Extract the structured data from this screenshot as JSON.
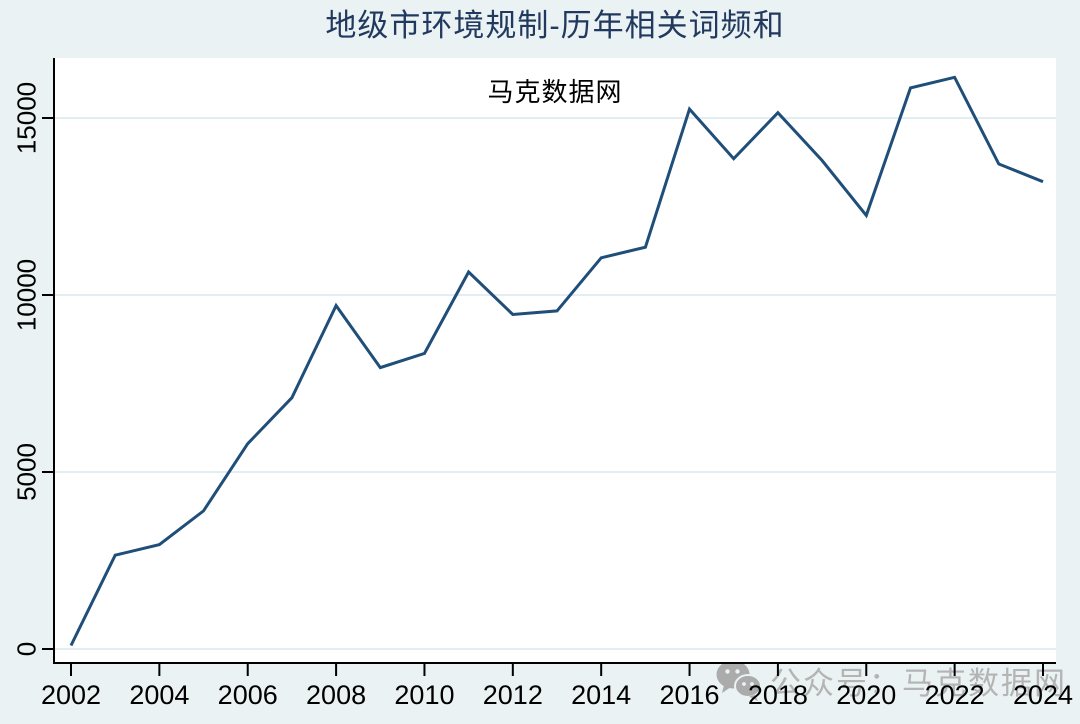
{
  "page": {
    "background": "#eaf2f3",
    "plot_background": "#ffffff",
    "axis_color": "#000000",
    "gridline_color": "#e3eef3"
  },
  "chart_data": {
    "type": "line",
    "title": "地级市环境规制-历年相关词频和",
    "subtitle": "马克数据网",
    "x": [
      2002,
      2003,
      2004,
      2005,
      2006,
      2007,
      2008,
      2009,
      2010,
      2011,
      2012,
      2013,
      2014,
      2015,
      2016,
      2017,
      2018,
      2019,
      2020,
      2021,
      2022,
      2023,
      2024
    ],
    "values": [
      100,
      2650,
      2950,
      3900,
      5800,
      7100,
      9700,
      7950,
      8350,
      10650,
      9450,
      9550,
      11050,
      11350,
      15250,
      13850,
      15150,
      13800,
      12250,
      15850,
      16150,
      13700,
      13200
    ],
    "xlabel": "",
    "ylabel": "",
    "xticks": [
      2002,
      2004,
      2006,
      2008,
      2010,
      2012,
      2014,
      2016,
      2018,
      2020,
      2022,
      2024
    ],
    "yticks": [
      0,
      5000,
      10000,
      15000
    ],
    "ylim": [
      0,
      16700
    ],
    "xlim": [
      2001.6,
      2024.3
    ],
    "grid": "horizontal",
    "legend": "none",
    "line_color": "#1f4e79",
    "title_color": "#21395f"
  },
  "watermark": {
    "icon": "wechat-icon",
    "text": "公众号：马克数据网",
    "color": "#b4b4b4"
  }
}
